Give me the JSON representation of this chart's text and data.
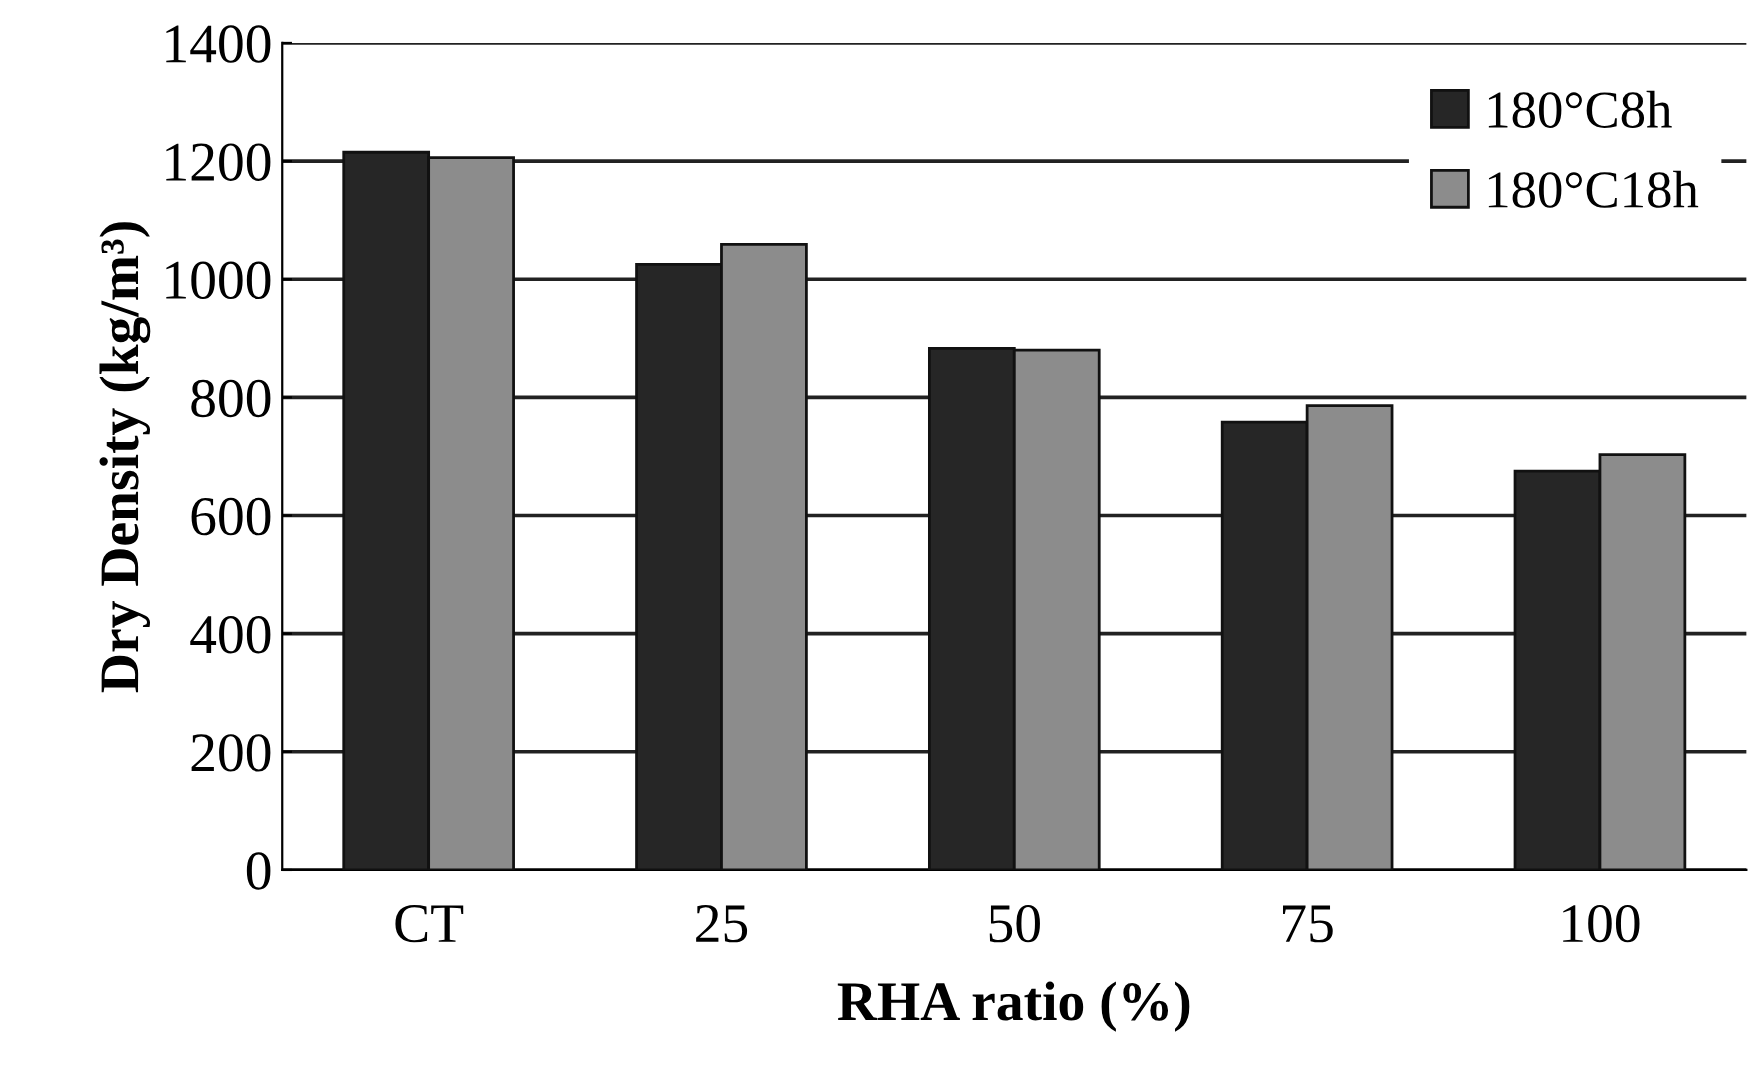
{
  "chart_data": {
    "type": "bar",
    "xlabel": "RHA ratio (%)",
    "ylabel": "Dry Density (kg/m³)",
    "categories": [
      "CT",
      "25",
      "50",
      "75",
      "100"
    ],
    "series": [
      {
        "name": "180°C8h",
        "color": "#262626",
        "values": [
          1215,
          1025,
          883,
          758,
          675
        ]
      },
      {
        "name": "180°C18h",
        "color": "#8c8c8c",
        "values": [
          1206,
          1059,
          880,
          786,
          703
        ]
      }
    ],
    "ylim": [
      0,
      1400
    ],
    "yticks": [
      0,
      200,
      400,
      600,
      800,
      1000,
      1200,
      1400
    ],
    "grid": "y",
    "legend": "top right"
  }
}
